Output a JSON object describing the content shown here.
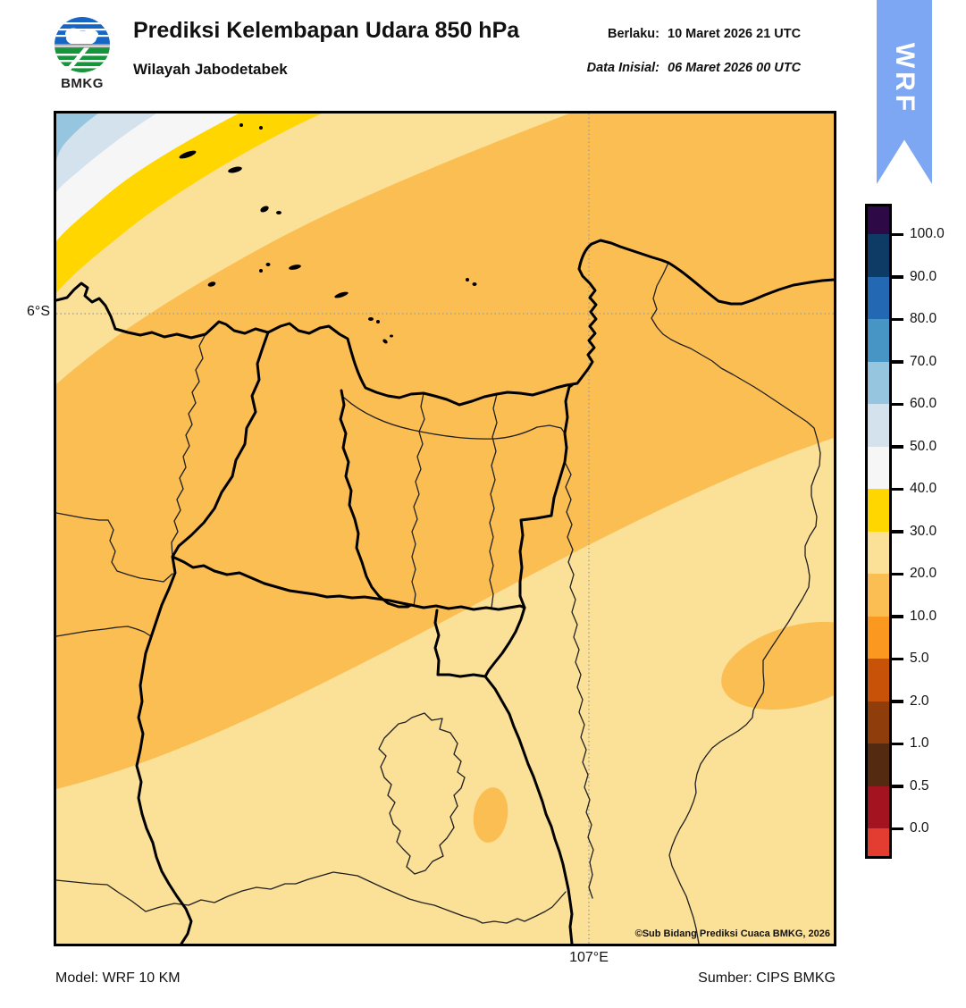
{
  "header": {
    "logo_label": "BMKG",
    "title": "Prediksi Kelembapan Udara 850 hPa",
    "subtitle": "Wilayah Jabodetabek",
    "valid_label": "Berlaku:",
    "valid_value": "10 Maret 2026 21 UTC",
    "init_label": "Data Inisial:",
    "init_value": "06 Maret 2026 00 UTC",
    "ribbon_label": "WRF",
    "ribbon_color": "#7EA7F3"
  },
  "map": {
    "lat_tick": "6°S",
    "lon_tick": "107°E",
    "copyright": "©Sub Bidang Prediksi Cuaca BMKG, 2026"
  },
  "footer": {
    "model": "Model: WRF 10 KM",
    "source": "Sumber: CIPS BMKG"
  },
  "chart_data": {
    "type": "heatmap",
    "title": "Prediksi Kelembapan Udara 850 hPa",
    "subtitle": "Wilayah Jabodetabek",
    "gridlines": {
      "lat": "6°S",
      "lon": "107°E",
      "style": "dotted"
    },
    "colorbar": {
      "orientation": "vertical",
      "position": "right",
      "ticks": [
        "100.0",
        "90.0",
        "80.0",
        "70.0",
        "60.0",
        "50.0",
        "40.0",
        "30.0",
        "20.0",
        "10.0",
        "5.0",
        "2.0",
        "1.0",
        "0.5",
        "0.0"
      ],
      "segment_colors": [
        "#2D0A45",
        "#0E3A66",
        "#2268B2",
        "#4695C5",
        "#96C5DF",
        "#D4E2EE",
        "#F6F6F7",
        "#FFD600",
        "#FBE098",
        "#FBBE52",
        "#FA9820",
        "#C85207",
        "#8F3E0B",
        "#542A10",
        "#A31420",
        "#E33D31"
      ]
    },
    "regions": [
      {
        "area": "northwest corner arc",
        "value_band": "60-70"
      },
      {
        "area": "nw diagonal band 2",
        "value_band": "50-60"
      },
      {
        "area": "nw diagonal band 3",
        "value_band": "40-50"
      },
      {
        "area": "nw diagonal band 4 (yellow)",
        "value_band": "30-40"
      },
      {
        "area": "nw diagonal band 5 (tan)",
        "value_band": "20-30"
      },
      {
        "area": "central / northern main field",
        "value_band": "10-20"
      },
      {
        "area": "southeast half of map",
        "value_band": "20-30"
      },
      {
        "area": "east-edge pocket",
        "value_band": "10-20"
      },
      {
        "area": "south-central small pocket",
        "value_band": "10-20"
      }
    ]
  }
}
